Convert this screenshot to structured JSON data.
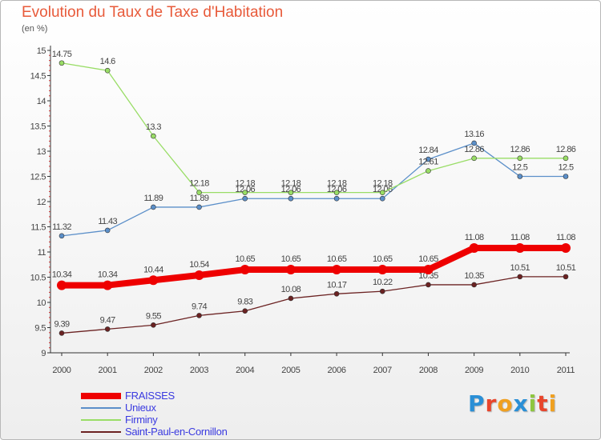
{
  "title": "Evolution du Taux de Taxe d'Habitation",
  "unit_label": "(en %)",
  "logo": {
    "text": "Proxiti",
    "letter_colors": [
      "#2a8fd6",
      "#e8452c",
      "#f0a020",
      "#2a8fd6",
      "#8ec63f",
      "#e8452c",
      "#f0a020"
    ]
  },
  "colors": {
    "title": "#e85a3a",
    "legend_text": "#3a3ae0",
    "axis": "#333333"
  },
  "chart_data": {
    "type": "line",
    "title": "Evolution du Taux de Taxe d'Habitation",
    "ylabel": "(en %)",
    "xlabel": "",
    "x": [
      "2000",
      "2001",
      "2002",
      "2003",
      "2004",
      "2005",
      "2006",
      "2007",
      "2008",
      "2009",
      "2010",
      "2011"
    ],
    "ylim": [
      9,
      15
    ],
    "yticks": [
      "9",
      "9.5",
      "10",
      "10.5",
      "11",
      "11.5",
      "12",
      "12.5",
      "13",
      "13.5",
      "14",
      "14.5",
      "15"
    ],
    "grid": false,
    "legend_position": "bottom-left",
    "series": [
      {
        "name": "FRAISSES",
        "color": "#ee0000",
        "values": [
          10.34,
          10.34,
          10.44,
          10.54,
          10.65,
          10.65,
          10.65,
          10.65,
          10.65,
          11.08,
          11.08,
          11.08
        ],
        "labels": [
          "10.34",
          "10.34",
          "10.44",
          "10.54",
          "10.65",
          "10.65",
          "10.65",
          "10.65",
          "10.65",
          "11.08",
          "11.08",
          "11.08"
        ]
      },
      {
        "name": "Unieux",
        "color": "#5b8fc9",
        "values": [
          11.32,
          11.43,
          11.89,
          11.89,
          12.06,
          12.06,
          12.06,
          12.06,
          12.84,
          13.16,
          12.5,
          12.5
        ],
        "labels": [
          "11.32",
          "11.43",
          "11.89",
          "11.89",
          "12.06",
          "12.06",
          "12.06",
          "12.06",
          "12.84",
          "13.16",
          "12.5",
          "12.5"
        ]
      },
      {
        "name": "Firminy",
        "color": "#99dd66",
        "values": [
          14.75,
          14.6,
          13.3,
          12.18,
          12.18,
          12.18,
          12.18,
          12.18,
          12.61,
          12.86,
          12.86,
          12.86
        ],
        "labels": [
          "14.75",
          "14.6",
          "13.3",
          "12.18",
          "12.18",
          "12.18",
          "12.18",
          "12.18",
          "12.61",
          "12.86",
          "12.86",
          "12.86"
        ]
      },
      {
        "name": "Saint-Paul-en-Cornillon",
        "color": "#6b2222",
        "values": [
          9.39,
          9.47,
          9.55,
          9.74,
          9.83,
          10.08,
          10.17,
          10.22,
          10.35,
          10.35,
          10.51,
          10.51
        ],
        "labels": [
          "9.39",
          "9.47",
          "9.55",
          "9.74",
          "9.83",
          "10.08",
          "10.17",
          "10.22",
          "10.35",
          "10.35",
          "10.51",
          "10.51"
        ]
      }
    ]
  }
}
